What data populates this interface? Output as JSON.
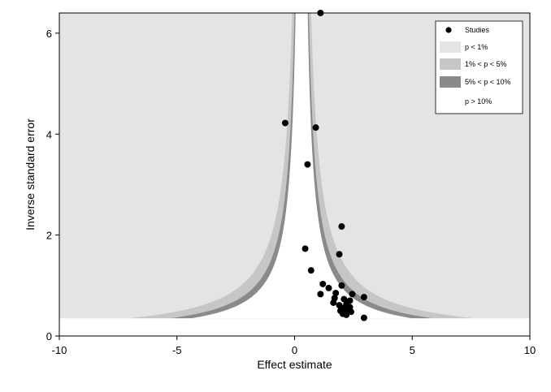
{
  "chart_data": {
    "type": "scatter",
    "subtype": "contour-enhanced funnel plot",
    "title": "",
    "xlabel": "Effect estimate",
    "ylabel": "Inverse standard error",
    "xlim": [
      -10,
      10
    ],
    "ylim": [
      0,
      6.4
    ],
    "x_ticks": [
      "-10",
      "-5",
      "0",
      "5",
      "10"
    ],
    "y_ticks": [
      "0",
      "2",
      "4",
      "6"
    ],
    "x_tick_values": [
      -10,
      -5,
      0,
      5,
      10
    ],
    "y_tick_values": [
      0,
      2,
      4,
      6
    ],
    "null_effect_center": 0.3,
    "contour_z": {
      "p1": 2.576,
      "p5": 1.96,
      "p10": 1.645
    },
    "contour_min_precision": 0.35,
    "grid": false,
    "legend_position": "top-right",
    "legend": [
      {
        "label": "Studies",
        "symbol": "marker",
        "color": "#000000"
      },
      {
        "label": "p < 1%",
        "symbol": "box",
        "color": "#e4e4e4"
      },
      {
        "label": "1% < p < 5%",
        "symbol": "box",
        "color": "#c6c6c6"
      },
      {
        "label": "5% < p < 10%",
        "symbol": "box",
        "color": "#8a8a8a"
      },
      {
        "label": "p > 10%",
        "symbol": "box",
        "color": "#ffffff"
      }
    ],
    "colors": {
      "p_lt_1": "#e4e4e4",
      "p_1_5": "#c6c6c6",
      "p_5_10": "#8a8a8a",
      "p_gt_10": "#ffffff",
      "marker": "#000000"
    },
    "series": [
      {
        "name": "Studies",
        "points": [
          {
            "x": 1.1,
            "y": 6.4
          },
          {
            "x": -0.4,
            "y": 4.22
          },
          {
            "x": 0.9,
            "y": 4.13
          },
          {
            "x": 0.55,
            "y": 3.4
          },
          {
            "x": 2.0,
            "y": 2.17
          },
          {
            "x": 0.45,
            "y": 1.73
          },
          {
            "x": 1.9,
            "y": 1.62
          },
          {
            "x": 0.7,
            "y": 1.3
          },
          {
            "x": 1.2,
            "y": 1.03
          },
          {
            "x": 1.45,
            "y": 0.95
          },
          {
            "x": 2.0,
            "y": 1.0
          },
          {
            "x": 1.1,
            "y": 0.83
          },
          {
            "x": 1.75,
            "y": 0.85
          },
          {
            "x": 2.45,
            "y": 0.83
          },
          {
            "x": 2.95,
            "y": 0.77
          },
          {
            "x": 1.7,
            "y": 0.75
          },
          {
            "x": 2.1,
            "y": 0.73
          },
          {
            "x": 2.35,
            "y": 0.7
          },
          {
            "x": 1.65,
            "y": 0.66
          },
          {
            "x": 2.2,
            "y": 0.63
          },
          {
            "x": 1.9,
            "y": 0.61
          },
          {
            "x": 2.35,
            "y": 0.57
          },
          {
            "x": 2.05,
            "y": 0.55
          },
          {
            "x": 2.25,
            "y": 0.52
          },
          {
            "x": 1.95,
            "y": 0.5
          },
          {
            "x": 2.4,
            "y": 0.48
          },
          {
            "x": 2.15,
            "y": 0.47
          },
          {
            "x": 2.05,
            "y": 0.44
          },
          {
            "x": 2.2,
            "y": 0.42
          },
          {
            "x": 2.95,
            "y": 0.36
          }
        ]
      }
    ]
  }
}
